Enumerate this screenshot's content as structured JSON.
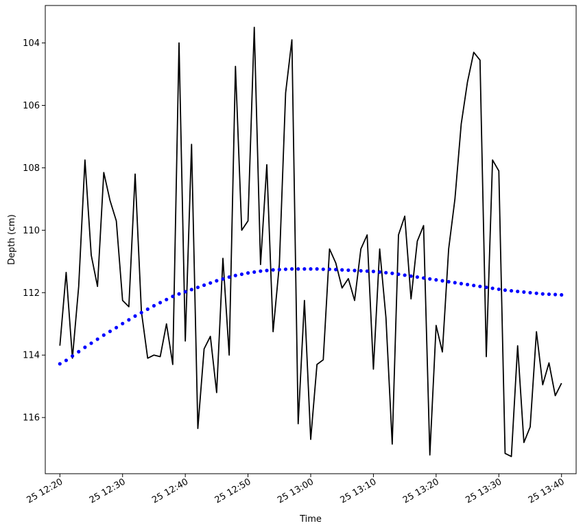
{
  "chart_data": {
    "type": "line",
    "xlabel": "Time",
    "ylabel": "Depth (cm)",
    "y_inverted": true,
    "ylim": [
      117.8,
      102.8
    ],
    "xlim": [
      "25 12:17:40",
      "25 13:42:20"
    ],
    "grid": false,
    "x_tick_labels": [
      "25 12:20",
      "25 12:30",
      "25 12:40",
      "25 12:50",
      "25 13:00",
      "25 13:10",
      "25 13:20",
      "25 13:30",
      "25 13:40"
    ],
    "x_ticks_min": [
      0,
      10,
      20,
      30,
      40,
      50,
      60,
      70,
      80
    ],
    "y_ticks": [
      104,
      106,
      108,
      110,
      112,
      114,
      116
    ],
    "series": [
      {
        "style": "line",
        "color": "#000000",
        "x_start": "25 12:20",
        "x_step_minutes": 1,
        "values": [
          113.7,
          111.35,
          114.1,
          111.8,
          107.75,
          110.8,
          111.8,
          108.15,
          109.05,
          109.7,
          112.25,
          112.45,
          108.2,
          112.6,
          114.1,
          114.0,
          114.05,
          113.0,
          114.3,
          104.0,
          113.55,
          107.25,
          116.35,
          113.8,
          113.4,
          115.2,
          110.9,
          114.0,
          104.75,
          110.0,
          109.7,
          103.5,
          111.1,
          107.9,
          113.25,
          111.1,
          105.6,
          103.9,
          116.2,
          112.25,
          116.7,
          114.3,
          114.15,
          110.6,
          111.05,
          111.85,
          111.55,
          112.25,
          110.6,
          110.15,
          114.45,
          110.6,
          112.8,
          116.85,
          110.15,
          109.55,
          112.2,
          110.35,
          109.85,
          117.2,
          113.05,
          113.9,
          110.6,
          109.0,
          106.6,
          105.25,
          104.3,
          104.55,
          114.05,
          107.75,
          108.1,
          117.15,
          117.25,
          113.7,
          116.8,
          116.3,
          113.25,
          114.95,
          114.25,
          115.3,
          114.9
        ]
      },
      {
        "style": "dots",
        "color": "#0000ff",
        "x_start": "25 12:20",
        "x_step_minutes": 1,
        "values": [
          114.28,
          114.17,
          114.03,
          113.89,
          113.75,
          113.62,
          113.49,
          113.36,
          113.24,
          113.12,
          112.99,
          112.87,
          112.75,
          112.64,
          112.53,
          112.42,
          112.32,
          112.22,
          112.12,
          112.04,
          111.97,
          111.9,
          111.83,
          111.76,
          111.69,
          111.62,
          111.56,
          111.5,
          111.45,
          111.41,
          111.37,
          111.34,
          111.31,
          111.29,
          111.27,
          111.26,
          111.25,
          111.24,
          111.24,
          111.24,
          111.24,
          111.24,
          111.25,
          111.25,
          111.26,
          111.27,
          111.28,
          111.29,
          111.3,
          111.31,
          111.32,
          111.34,
          111.36,
          111.38,
          111.41,
          111.44,
          111.47,
          111.5,
          111.53,
          111.56,
          111.59,
          111.62,
          111.65,
          111.68,
          111.71,
          111.74,
          111.77,
          111.8,
          111.83,
          111.86,
          111.89,
          111.92,
          111.94,
          111.96,
          111.98,
          112.0,
          112.02,
          112.04,
          112.05,
          112.06,
          112.07
        ]
      }
    ]
  }
}
